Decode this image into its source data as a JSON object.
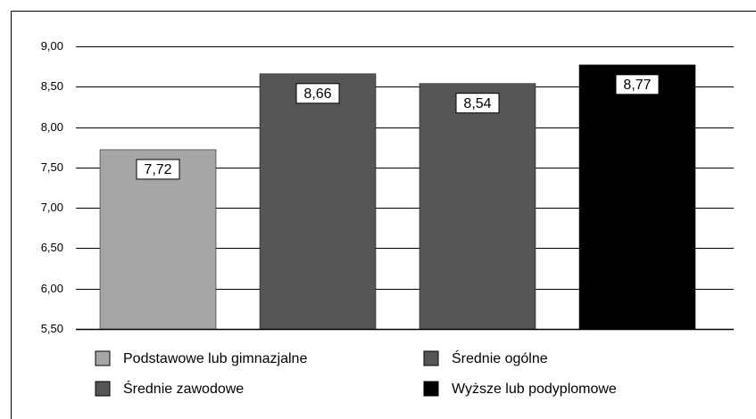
{
  "chart_data": {
    "type": "bar",
    "categories": [
      "Podstawowe lub gimnazjalne",
      "Średnie zawodowe",
      "Średnie ogólne",
      "Wyższe lub podyplomowe"
    ],
    "values": [
      7.72,
      8.66,
      8.54,
      8.77
    ],
    "value_labels": [
      "7,72",
      "8,66",
      "8,54",
      "8,77"
    ],
    "colors": [
      "#a6a6a6",
      "#555555",
      "#555555",
      "#000000"
    ],
    "ylim": [
      5.5,
      9.0
    ],
    "yticks": [
      {
        "value": 5.5,
        "label": "5,50"
      },
      {
        "value": 6.0,
        "label": "6,00"
      },
      {
        "value": 6.5,
        "label": "6,50"
      },
      {
        "value": 7.0,
        "label": "7,00"
      },
      {
        "value": 7.5,
        "label": "7,50"
      },
      {
        "value": 8.0,
        "label": "8,00"
      },
      {
        "value": 8.5,
        "label": "8,50"
      },
      {
        "value": 9.0,
        "label": "9,00"
      }
    ],
    "grid": true,
    "legend": "bottom"
  }
}
